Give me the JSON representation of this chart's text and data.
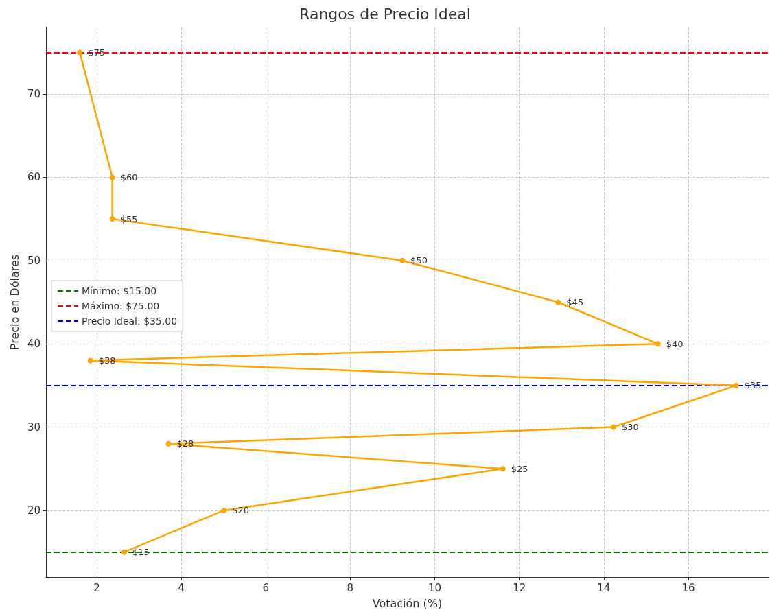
{
  "chart_data": {
    "type": "line",
    "title": "Rangos de Precio Ideal",
    "xlabel": "Votación (%)",
    "ylabel": "Precio en Dólares",
    "x": [
      1.6,
      2.37,
      2.37,
      9.23,
      12.92,
      15.28,
      1.85,
      17.13,
      14.23,
      3.7,
      11.61,
      5.01,
      2.65
    ],
    "series": [
      {
        "color": "#ffa500",
        "values": [
          75,
          60,
          55,
          50,
          45,
          40,
          38,
          35,
          30,
          28,
          25,
          20,
          15
        ],
        "value_labels": [
          "$75",
          "$60",
          "$55",
          "$50",
          "$45",
          "$40",
          "$38",
          "$35",
          "$30",
          "$28",
          "$25",
          "$20",
          "$15"
        ]
      }
    ],
    "xlim": [
      0.8,
      17.9
    ],
    "xticks": [
      2,
      4,
      6,
      8,
      10,
      12,
      14,
      16
    ],
    "ylim": [
      12,
      78
    ],
    "yticks": [
      20,
      30,
      40,
      50,
      60,
      70
    ],
    "ref_lines": [
      {
        "axis": "y",
        "value": 15,
        "label": "Mínimo: $15.00",
        "color": "#008000",
        "line_style": "dashed"
      },
      {
        "axis": "y",
        "value": 75,
        "label": "Máximo: $75.00",
        "color": "#ff0000",
        "line_style": "dashed"
      },
      {
        "axis": "y",
        "value": 35,
        "label": "Precio Ideal: $35.00",
        "color": "#0000ff",
        "line_style": "dashed"
      }
    ],
    "grid": true,
    "legend": "center left",
    "marker": "circle",
    "line_style": "solid"
  }
}
